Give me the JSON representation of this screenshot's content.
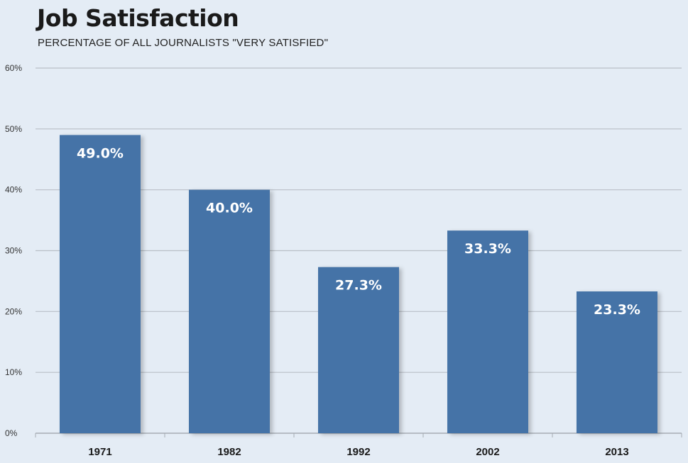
{
  "chart_data": {
    "type": "bar",
    "title": "Job Satisfaction",
    "subtitle": "PERCENTAGE OF ALL JOURNALISTS \"VERY SATISFIED\"",
    "xlabel": "",
    "ylabel": "",
    "categories": [
      "1971",
      "1982",
      "1992",
      "2002",
      "2013"
    ],
    "values": [
      49.0,
      40.0,
      27.3,
      33.3,
      23.3
    ],
    "data_labels": [
      "49.0%",
      "40.0%",
      "27.3%",
      "33.3%",
      "23.3%"
    ],
    "ylim": [
      0,
      60
    ],
    "yticks": [
      0,
      10,
      20,
      30,
      40,
      50,
      60
    ],
    "ytick_labels": [
      "0%",
      "10%",
      "20%",
      "30%",
      "40%",
      "50%",
      "60%"
    ],
    "grid": true,
    "legend": "none",
    "colors": {
      "bar": "#4573a7",
      "background": "#e4ecf5",
      "gridline": "#b9bfc7",
      "baseline": "#a6acb4",
      "data_label": "#ffffff"
    }
  }
}
